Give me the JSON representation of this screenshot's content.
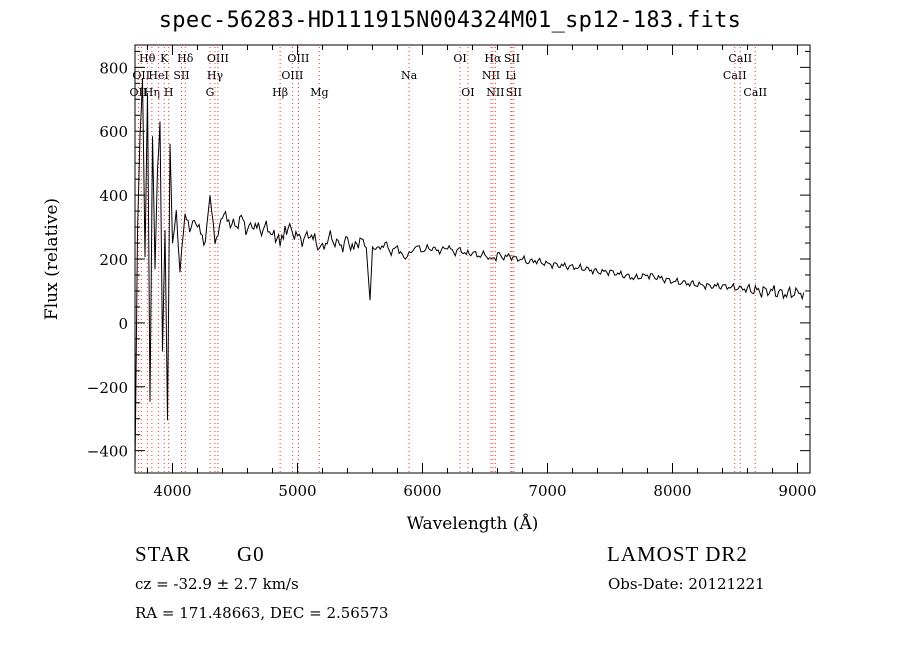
{
  "chart_data": {
    "type": "line",
    "title": "spec-56283-HD111915N004324M01_sp12-183.fits",
    "xlabel": "Wavelength (Å)",
    "ylabel": "Flux (relative)",
    "xlim": [
      3700,
      9100
    ],
    "ylim": [
      -470,
      870
    ],
    "x_ticks": [
      4000,
      5000,
      6000,
      7000,
      8000,
      9000
    ],
    "y_ticks": [
      -400,
      -200,
      0,
      200,
      400,
      600,
      800
    ],
    "grid": false,
    "series": [
      {
        "x": [
          3700,
          3720,
          3740,
          3760,
          3780,
          3800,
          3820,
          3840,
          3860,
          3880,
          3900,
          3920,
          3940,
          3960,
          3980,
          4000,
          4030,
          4060,
          4100,
          4150,
          4200,
          4250,
          4300,
          4340,
          4400,
          4450,
          4500,
          4550,
          4600,
          4650,
          4700,
          4750,
          4800,
          4861,
          4900,
          4950,
          5000,
          5050,
          5100,
          5150,
          5200,
          5250,
          5300,
          5350,
          5400,
          5450,
          5500,
          5550,
          5580,
          5600,
          5650,
          5700,
          5750,
          5800,
          5850,
          5893,
          5950,
          6000,
          6050,
          6100,
          6150,
          6200,
          6250,
          6300,
          6350,
          6400,
          6450,
          6500,
          6563,
          6600,
          6650,
          6700,
          6750,
          6800,
          6850,
          6900,
          6950,
          7000,
          7100,
          7200,
          7300,
          7400,
          7500,
          7600,
          7700,
          7800,
          7900,
          8000,
          8100,
          8200,
          8300,
          8400,
          8500,
          8600,
          8700,
          8800,
          8900,
          9000,
          9050
        ],
        "y": [
          -450,
          300,
          650,
          820,
          200,
          700,
          -250,
          550,
          100,
          450,
          650,
          -80,
          300,
          -250,
          620,
          250,
          350,
          150,
          330,
          300,
          320,
          240,
          380,
          250,
          340,
          320,
          300,
          330,
          290,
          310,
          290,
          300,
          280,
          250,
          300,
          290,
          270,
          260,
          280,
          250,
          230,
          270,
          255,
          240,
          260,
          230,
          265,
          240,
          70,
          240,
          230,
          250,
          220,
          240,
          200,
          215,
          240,
          225,
          235,
          230,
          225,
          240,
          220,
          230,
          215,
          220,
          210,
          215,
          195,
          215,
          205,
          210,
          200,
          200,
          190,
          195,
          190,
          185,
          180,
          175,
          170,
          160,
          160,
          150,
          140,
          150,
          140,
          130,
          125,
          120,
          115,
          115,
          110,
          105,
          100,
          100,
          90,
          95,
          95
        ]
      }
    ]
  },
  "lines": [
    {
      "w": 3727,
      "label": "OII",
      "row": 3
    },
    {
      "w": 3750,
      "label": "OII",
      "row": 2
    },
    {
      "w": 3798,
      "label": "Hθ",
      "row": 1
    },
    {
      "w": 3835,
      "label": "Hη",
      "row": 3
    },
    {
      "w": 3889,
      "label": "HeI",
      "row": 2
    },
    {
      "w": 3934,
      "label": "K",
      "row": 1
    },
    {
      "w": 3969,
      "label": "H",
      "row": 3
    },
    {
      "w": 4072,
      "label": "SII",
      "row": 2
    },
    {
      "w": 4102,
      "label": "Hδ",
      "row": 1
    },
    {
      "w": 4300,
      "label": "G",
      "row": 3
    },
    {
      "w": 4340,
      "label": "Hγ",
      "row": 2
    },
    {
      "w": 4363,
      "label": "OIII",
      "row": 1
    },
    {
      "w": 4861,
      "label": "Hβ",
      "row": 3
    },
    {
      "w": 4959,
      "label": "OIII",
      "row": 2
    },
    {
      "w": 5007,
      "label": "OIII",
      "row": 1
    },
    {
      "w": 5175,
      "label": "Mg",
      "row": 3
    },
    {
      "w": 5893,
      "label": "Na",
      "row": 2
    },
    {
      "w": 6300,
      "label": "OI",
      "row": 1
    },
    {
      "w": 6363,
      "label": "OI",
      "row": 3
    },
    {
      "w": 6548,
      "label": "NII",
      "row": 2
    },
    {
      "w": 6563,
      "label": "Hα",
      "row": 1
    },
    {
      "w": 6583,
      "label": "NII",
      "row": 3
    },
    {
      "w": 6707,
      "label": "Li",
      "row": 2
    },
    {
      "w": 6716,
      "label": "SII",
      "row": 1
    },
    {
      "w": 6731,
      "label": "SII",
      "row": 3
    },
    {
      "w": 8498,
      "label": "CaII",
      "row": 2
    },
    {
      "w": 8542,
      "label": "CaII",
      "row": 1
    },
    {
      "w": 8662,
      "label": "CaII",
      "row": 3
    }
  ],
  "footer": {
    "object_class": "STAR",
    "subclass": "G0",
    "survey": "LAMOST DR2",
    "redshift": "cz = -32.9 ± 2.7 km/s",
    "obs_date": "Obs-Date: 20121221",
    "coords": "RA = 171.48663, DEC =   2.56573"
  }
}
